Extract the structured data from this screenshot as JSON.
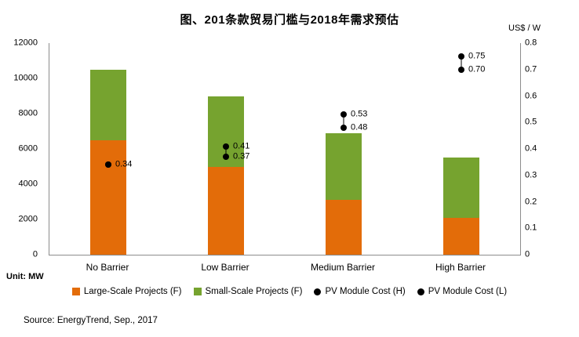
{
  "chart_data": {
    "type": "bar",
    "stacked": true,
    "title": "图、201条款贸易门槛与2018年需求预估",
    "categories": [
      "No Barrier",
      "Low Barrier",
      "Medium Barrier",
      "High Barrier"
    ],
    "bar_series": [
      {
        "name": "Large-Scale Projects (F)",
        "color": "#E36C09",
        "axis": "left",
        "values": [
          6500,
          5000,
          3100,
          2100
        ]
      },
      {
        "name": "Small-Scale Projects (F)",
        "color": "#76A32F",
        "axis": "left",
        "values": [
          4000,
          4000,
          3800,
          3400
        ]
      }
    ],
    "point_series": [
      {
        "name": "PV Module Cost (H)",
        "color": "#000000",
        "axis": "right",
        "values": [
          0.34,
          0.41,
          0.53,
          0.75
        ]
      },
      {
        "name": "PV Module Cost (L)",
        "color": "#000000",
        "axis": "right",
        "values": [
          0.34,
          0.37,
          0.48,
          0.7
        ]
      }
    ],
    "point_labels": [
      [
        "0.34"
      ],
      [
        "0.41",
        "0.37"
      ],
      [
        "0.53",
        "0.48"
      ],
      [
        "0.75",
        "0.70"
      ]
    ],
    "left_axis": {
      "unit_label": "Unit: MW",
      "min": 0,
      "max": 12000,
      "ticks": [
        0,
        2000,
        4000,
        6000,
        8000,
        10000,
        12000
      ]
    },
    "right_axis": {
      "title": "US$ / W",
      "min": 0,
      "max": 0.8,
      "ticks": [
        0,
        0.1,
        0.2,
        0.3,
        0.4,
        0.5,
        0.6,
        0.7,
        0.8
      ]
    },
    "grid": false,
    "legend_position": "bottom",
    "source": "Source: EnergyTrend, Sep., 2017"
  }
}
